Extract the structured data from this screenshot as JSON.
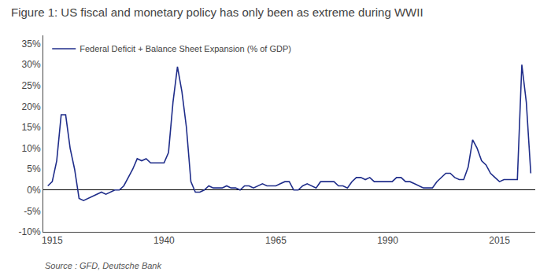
{
  "chart_data": {
    "type": "line",
    "title": "Figure 1: US fiscal and monetary policy has only been as extreme during WWII",
    "annotations": [
      "Source : GFD, Deutsche Bank"
    ],
    "x": [
      1914,
      1915,
      1916,
      1917,
      1918,
      1919,
      1920,
      1921,
      1922,
      1923,
      1924,
      1925,
      1926,
      1927,
      1928,
      1929,
      1930,
      1931,
      1932,
      1933,
      1934,
      1935,
      1936,
      1937,
      1938,
      1939,
      1940,
      1941,
      1942,
      1943,
      1944,
      1945,
      1946,
      1947,
      1948,
      1949,
      1950,
      1951,
      1952,
      1953,
      1954,
      1955,
      1956,
      1957,
      1958,
      1959,
      1960,
      1961,
      1962,
      1963,
      1964,
      1965,
      1966,
      1967,
      1968,
      1969,
      1970,
      1971,
      1972,
      1973,
      1974,
      1975,
      1976,
      1977,
      1978,
      1979,
      1980,
      1981,
      1982,
      1983,
      1984,
      1985,
      1986,
      1987,
      1988,
      1989,
      1990,
      1991,
      1992,
      1993,
      1994,
      1995,
      1996,
      1997,
      1998,
      1999,
      2000,
      2001,
      2002,
      2003,
      2004,
      2005,
      2006,
      2007,
      2008,
      2009,
      2010,
      2011,
      2012,
      2013,
      2014,
      2015,
      2016,
      2017,
      2018,
      2019,
      2020,
      2021,
      2022
    ],
    "series": [
      {
        "name": "Federal Deficit + Balance Sheet Expansion (% of GDP)",
        "color": "#1F2D8A",
        "values": [
          0.01,
          0.02,
          0.07,
          0.18,
          0.18,
          0.1,
          0.05,
          -0.02,
          -0.025,
          -0.02,
          -0.015,
          -0.01,
          -0.005,
          -0.01,
          -0.005,
          0.0,
          0.0,
          0.01,
          0.03,
          0.05,
          0.075,
          0.07,
          0.075,
          0.065,
          0.065,
          0.065,
          0.065,
          0.09,
          0.21,
          0.295,
          0.235,
          0.15,
          0.02,
          -0.005,
          -0.005,
          0.0,
          0.01,
          0.005,
          0.005,
          0.005,
          0.01,
          0.005,
          0.005,
          0.0,
          0.01,
          0.01,
          0.005,
          0.01,
          0.015,
          0.01,
          0.01,
          0.01,
          0.015,
          0.02,
          0.02,
          0.0,
          0.0,
          0.01,
          0.015,
          0.01,
          0.005,
          0.02,
          0.02,
          0.02,
          0.02,
          0.01,
          0.01,
          0.005,
          0.02,
          0.03,
          0.03,
          0.025,
          0.03,
          0.02,
          0.02,
          0.02,
          0.02,
          0.02,
          0.03,
          0.03,
          0.02,
          0.02,
          0.015,
          0.01,
          0.005,
          0.005,
          0.005,
          0.02,
          0.03,
          0.04,
          0.04,
          0.03,
          0.025,
          0.025,
          0.055,
          0.12,
          0.1,
          0.07,
          0.06,
          0.04,
          0.03,
          0.02,
          0.025,
          0.025,
          0.025,
          0.025,
          0.3,
          0.21,
          0.04
        ]
      }
    ],
    "xlim": [
      1913,
      2023
    ],
    "xticks": [
      1915,
      1940,
      1965,
      1990,
      2015
    ],
    "ylim": [
      -0.1,
      0.37
    ],
    "yticks": [
      {
        "value": -0.1,
        "label": "-10%"
      },
      {
        "value": -0.05,
        "label": "-5%"
      },
      {
        "value": 0.0,
        "label": "0%"
      },
      {
        "value": 0.05,
        "label": "5%"
      },
      {
        "value": 0.1,
        "label": "10%"
      },
      {
        "value": 0.15,
        "label": "15%"
      },
      {
        "value": 0.2,
        "label": "20%"
      },
      {
        "value": 0.25,
        "label": "25%"
      },
      {
        "value": 0.3,
        "label": "30%"
      },
      {
        "value": 0.35,
        "label": "35%"
      }
    ],
    "grid": false,
    "legend": "upper left"
  }
}
